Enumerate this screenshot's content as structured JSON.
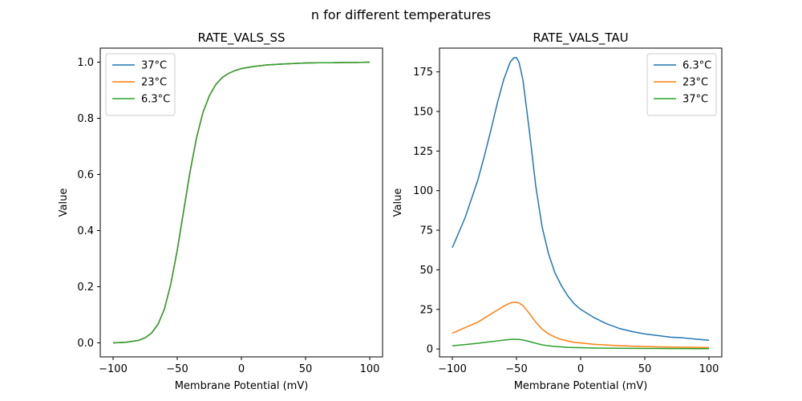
{
  "figure": {
    "suptitle": "n for different temperatures"
  },
  "chart_data": [
    {
      "type": "line",
      "title": "RATE_VALS_SS",
      "xlabel": "Membrane Potential (mV)",
      "ylabel": "Value",
      "xlim": [
        -110,
        110
      ],
      "ylim": [
        -0.05,
        1.05
      ],
      "xticks": [
        -100,
        -50,
        0,
        50,
        100
      ],
      "xtick_labels": [
        "−100",
        "−50",
        "0",
        "50",
        "100"
      ],
      "yticks": [
        0.0,
        0.2,
        0.4,
        0.6,
        0.8,
        1.0
      ],
      "ytick_labels": [
        "0.0",
        "0.2",
        "0.4",
        "0.6",
        "0.8",
        "1.0"
      ],
      "legend_position": "upper-left",
      "x": [
        -100,
        -90,
        -80,
        -75,
        -70,
        -65,
        -60,
        -55,
        -50,
        -45,
        -40,
        -35,
        -30,
        -25,
        -20,
        -15,
        -10,
        -5,
        0,
        10,
        20,
        30,
        40,
        50,
        60,
        70,
        80,
        90,
        100
      ],
      "series": [
        {
          "name": "37°C",
          "color": "#1f77b4",
          "values": [
            0.0,
            0.002,
            0.009,
            0.018,
            0.035,
            0.066,
            0.12,
            0.21,
            0.33,
            0.47,
            0.61,
            0.73,
            0.82,
            0.88,
            0.92,
            0.945,
            0.96,
            0.97,
            0.977,
            0.985,
            0.99,
            0.993,
            0.995,
            0.997,
            0.998,
            0.998,
            0.999,
            0.999,
            1.0
          ]
        },
        {
          "name": "23°C",
          "color": "#ff7f0e",
          "values": [
            0.0,
            0.002,
            0.009,
            0.018,
            0.035,
            0.066,
            0.12,
            0.21,
            0.33,
            0.47,
            0.61,
            0.73,
            0.82,
            0.88,
            0.92,
            0.945,
            0.96,
            0.97,
            0.977,
            0.985,
            0.99,
            0.993,
            0.995,
            0.997,
            0.998,
            0.998,
            0.999,
            0.999,
            1.0
          ]
        },
        {
          "name": "6.3°C",
          "color": "#2ca02c",
          "values": [
            0.0,
            0.002,
            0.009,
            0.018,
            0.035,
            0.066,
            0.12,
            0.21,
            0.33,
            0.47,
            0.61,
            0.73,
            0.82,
            0.88,
            0.92,
            0.945,
            0.96,
            0.97,
            0.977,
            0.985,
            0.99,
            0.993,
            0.995,
            0.997,
            0.998,
            0.998,
            0.999,
            0.999,
            1.0
          ]
        }
      ]
    },
    {
      "type": "line",
      "title": "RATE_VALS_TAU",
      "xlabel": "Membrane Potential (mV)",
      "ylabel": "Value",
      "xlim": [
        -110,
        110
      ],
      "ylim": [
        -5,
        190
      ],
      "xticks": [
        -100,
        -50,
        0,
        50,
        100
      ],
      "xtick_labels": [
        "−100",
        "−50",
        "0",
        "50",
        "100"
      ],
      "yticks": [
        0,
        25,
        50,
        75,
        100,
        125,
        150,
        175
      ],
      "ytick_labels": [
        "0",
        "25",
        "50",
        "75",
        "100",
        "125",
        "150",
        "175"
      ],
      "legend_position": "upper-right",
      "x": [
        -100,
        -90,
        -80,
        -75,
        -70,
        -65,
        -60,
        -55,
        -52,
        -50,
        -48,
        -45,
        -40,
        -35,
        -30,
        -25,
        -20,
        -15,
        -10,
        -5,
        0,
        10,
        20,
        30,
        40,
        50,
        60,
        70,
        80,
        90,
        100
      ],
      "series": [
        {
          "name": "6.3°C",
          "color": "#1f77b4",
          "values": [
            64,
            83,
            107,
            122,
            138,
            155,
            170,
            181,
            184,
            184,
            181,
            170,
            138,
            103,
            77,
            60,
            48,
            40,
            33.5,
            28.5,
            25,
            20,
            16,
            13,
            11,
            9.5,
            8.5,
            7.5,
            7,
            6.2,
            5.5
          ]
        },
        {
          "name": "23°C",
          "color": "#ff7f0e",
          "values": [
            10,
            13.5,
            17,
            19.5,
            22,
            24.5,
            27,
            29,
            29.5,
            29.5,
            29,
            27.5,
            22.5,
            17,
            12.5,
            9.5,
            7.5,
            6,
            5,
            4.2,
            3.8,
            3,
            2.5,
            2.1,
            1.8,
            1.5,
            1.3,
            1.2,
            1.1,
            1,
            0.9
          ]
        },
        {
          "name": "37°C",
          "color": "#2ca02c",
          "values": [
            2,
            2.8,
            3.6,
            4.1,
            4.6,
            5.1,
            5.6,
            6,
            6.1,
            6.1,
            6,
            5.7,
            4.7,
            3.6,
            2.6,
            2,
            1.6,
            1.3,
            1,
            0.9,
            0.8,
            0.6,
            0.5,
            0.45,
            0.4,
            0.35,
            0.3,
            0.28,
            0.25,
            0.22,
            0.2
          ]
        }
      ]
    }
  ]
}
